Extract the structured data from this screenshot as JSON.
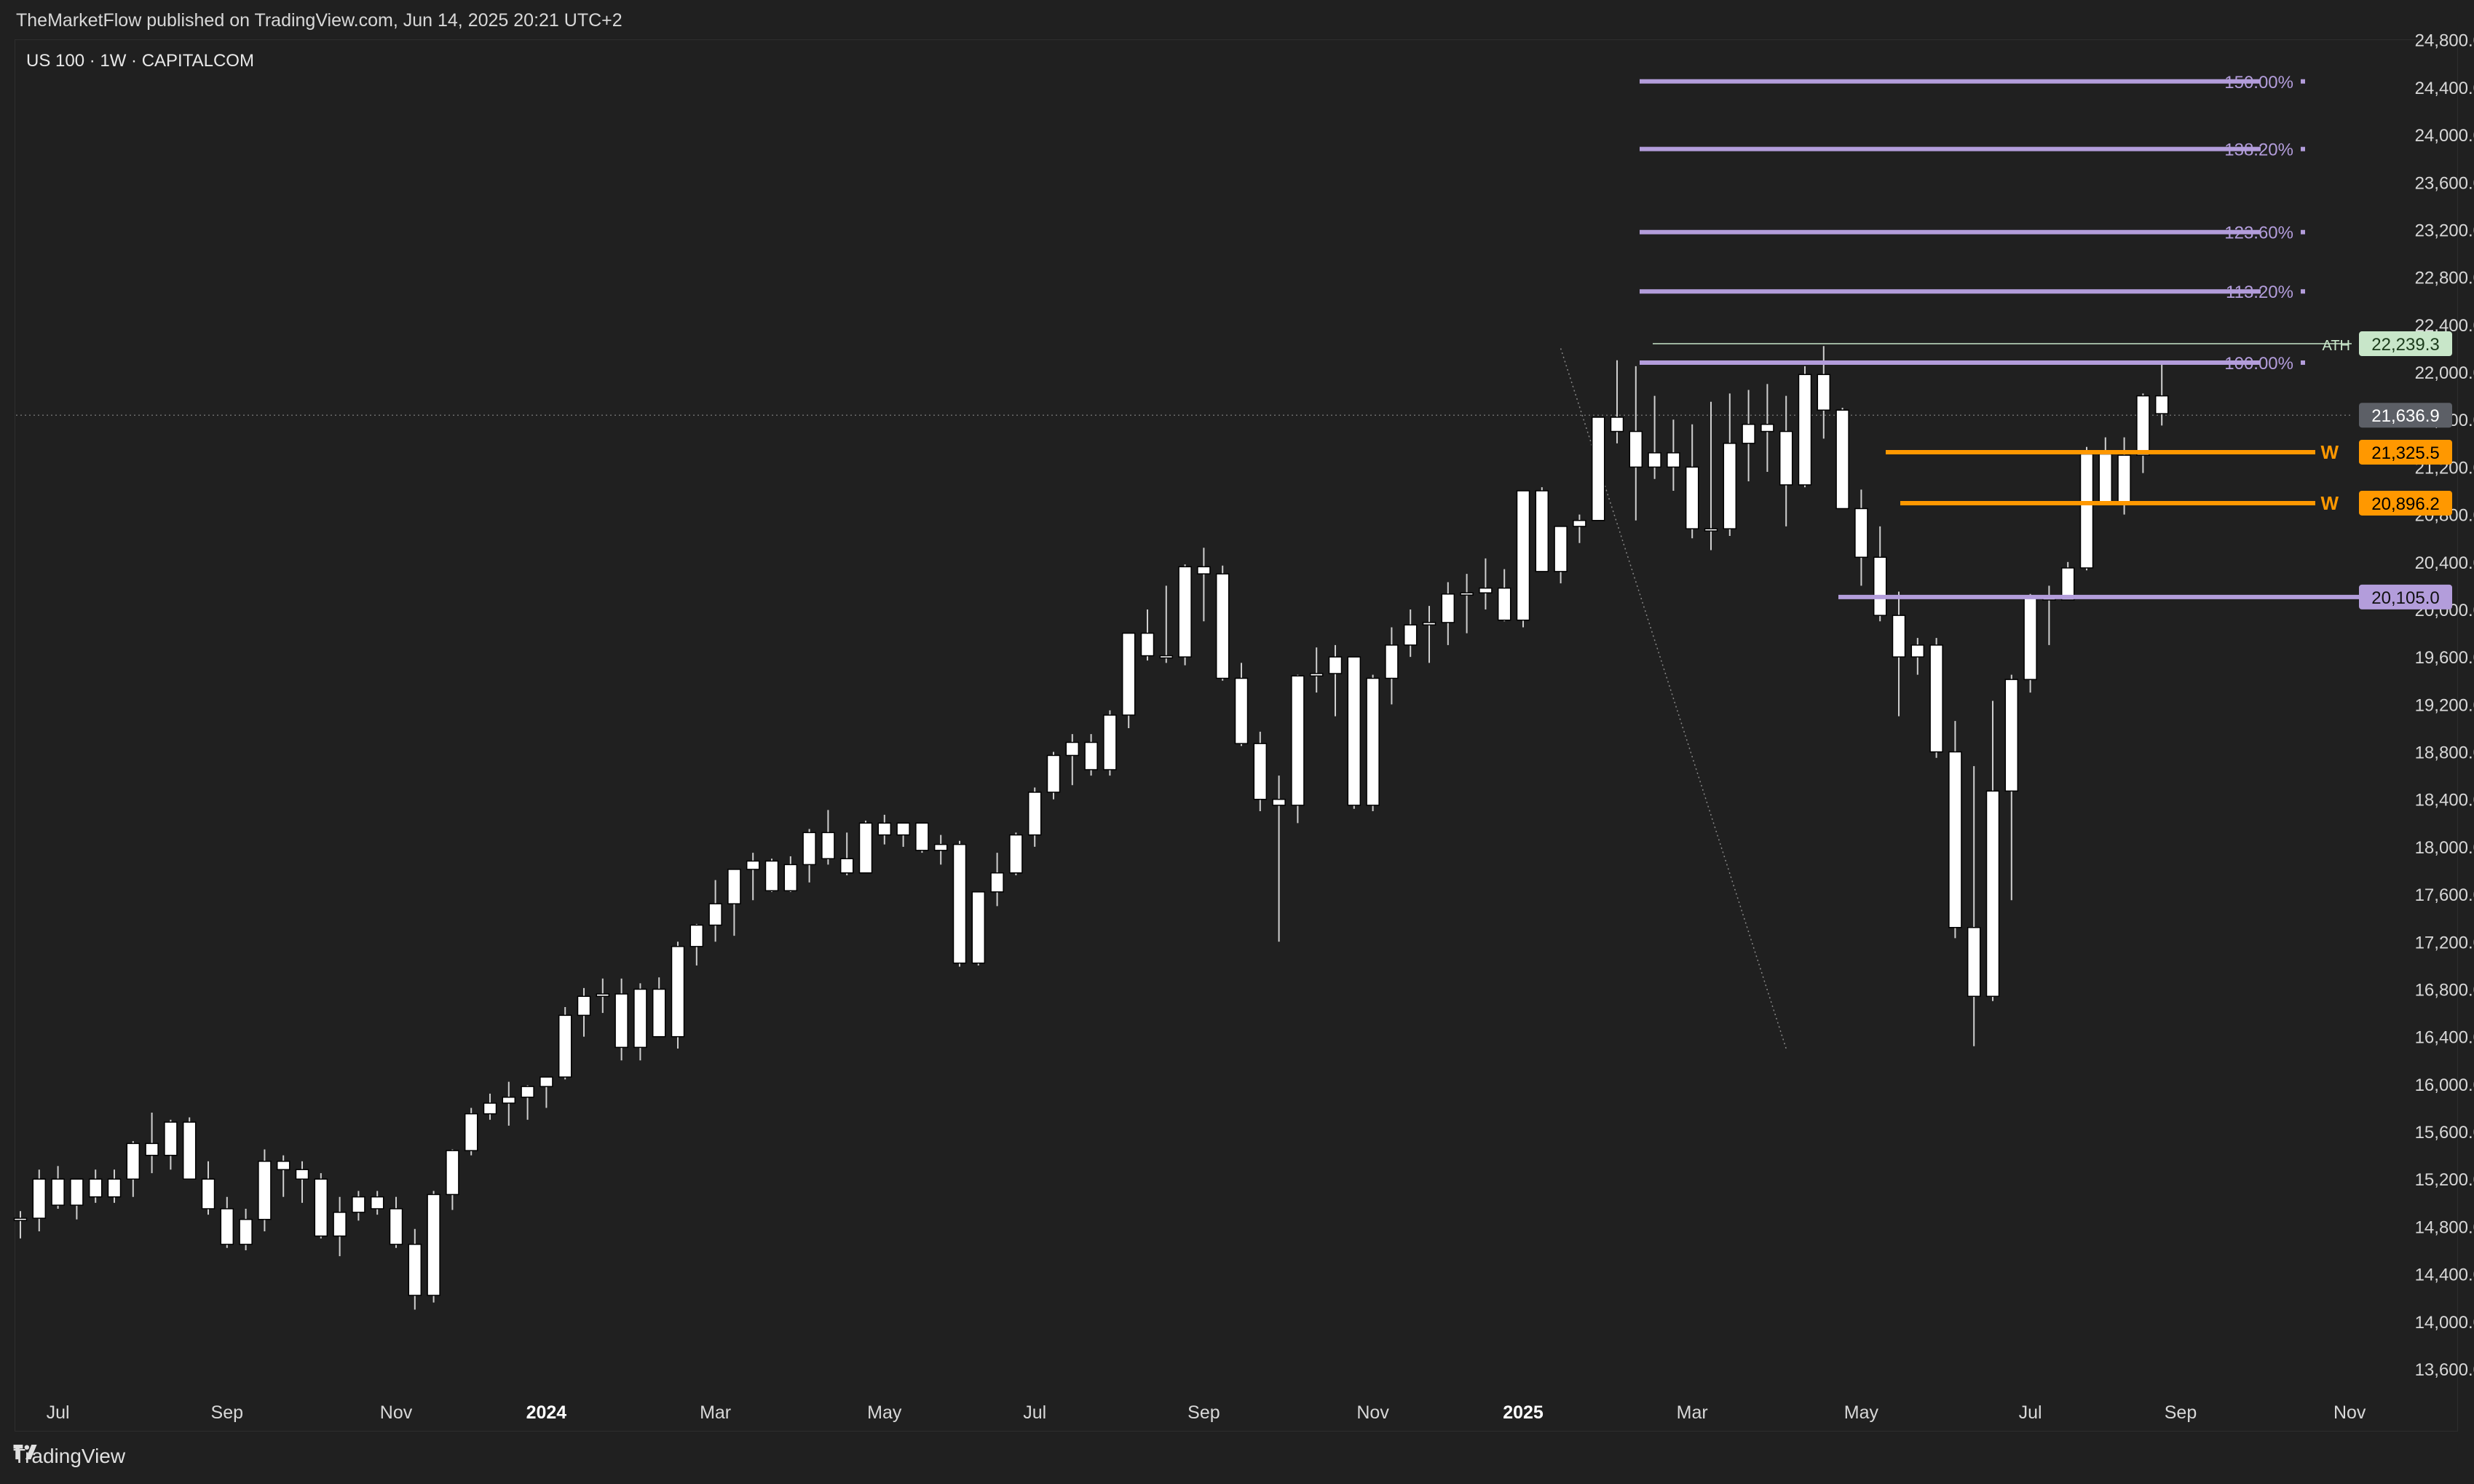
{
  "header": {
    "published": "TheMarketFlow published on TradingView.com, Jun 14, 2025 20:21 UTC+2",
    "symbol": "US 100 · 1W · CAPITALCOM"
  },
  "footer": {
    "brand": "TradingView"
  },
  "colors": {
    "background": "#202020",
    "candle_up": "#ffffff",
    "candle_down": "#ffffff",
    "wick": "#cfcfcf",
    "fib": "#b39ddb",
    "weekly_level": "#ff9800",
    "ath": "#c8e6c9"
  },
  "chart_data": {
    "type": "candlestick",
    "ylim": [
      13400,
      24800
    ],
    "y_ticks": [
      "13,600.0",
      "14,000.0",
      "14,400.0",
      "14,800.0",
      "15,200.0",
      "15,600.0",
      "16,000.0",
      "16,400.0",
      "16,800.0",
      "17,200.0",
      "17,600.0",
      "18,000.0",
      "18,400.0",
      "18,800.0",
      "19,200.0",
      "19,600.0",
      "20,000.0",
      "20,400.0",
      "20,800.0",
      "21,200.0",
      "21,600.0",
      "22,000.0",
      "22,400.0",
      "22,800.0",
      "23,200.0",
      "23,600.0",
      "24,000.0",
      "24,400.0",
      "24,800.0"
    ],
    "x_labels": [
      {
        "label": "Jul",
        "week": 2,
        "bold": false
      },
      {
        "label": "Sep",
        "week": 11,
        "bold": false
      },
      {
        "label": "Nov",
        "week": 20,
        "bold": false
      },
      {
        "label": "2024",
        "week": 28,
        "bold": true
      },
      {
        "label": "Mar",
        "week": 37,
        "bold": false
      },
      {
        "label": "May",
        "week": 46,
        "bold": false
      },
      {
        "label": "Jul",
        "week": 54,
        "bold": false
      },
      {
        "label": "Sep",
        "week": 63,
        "bold": false
      },
      {
        "label": "Nov",
        "week": 72,
        "bold": false
      },
      {
        "label": "2025",
        "week": 80,
        "bold": true
      },
      {
        "label": "Mar",
        "week": 89,
        "bold": false
      },
      {
        "label": "May",
        "week": 98,
        "bold": false
      },
      {
        "label": "Jul",
        "week": 107,
        "bold": false
      },
      {
        "label": "Sep",
        "week": 115,
        "bold": false
      },
      {
        "label": "Nov",
        "week": 124,
        "bold": false
      }
    ],
    "candles": [
      [
        14870,
        14930,
        14700,
        14870
      ],
      [
        14870,
        15280,
        14760,
        15200
      ],
      [
        15200,
        15310,
        14950,
        14980
      ],
      [
        14980,
        15200,
        14860,
        15200
      ],
      [
        15200,
        15280,
        15000,
        15050
      ],
      [
        15050,
        15280,
        15000,
        15200
      ],
      [
        15200,
        15520,
        15050,
        15500
      ],
      [
        15500,
        15760,
        15250,
        15400
      ],
      [
        15400,
        15700,
        15280,
        15680
      ],
      [
        15680,
        15720,
        15200,
        15200
      ],
      [
        15200,
        15350,
        14900,
        14950
      ],
      [
        14950,
        15050,
        14620,
        14650
      ],
      [
        14650,
        14950,
        14600,
        14860
      ],
      [
        14860,
        15450,
        14760,
        15350
      ],
      [
        15350,
        15400,
        15050,
        15280
      ],
      [
        15280,
        15350,
        15000,
        15200
      ],
      [
        15200,
        15250,
        14700,
        14720
      ],
      [
        14720,
        15050,
        14550,
        14920
      ],
      [
        14920,
        15100,
        14850,
        15050
      ],
      [
        15050,
        15100,
        14900,
        14950
      ],
      [
        14950,
        15050,
        14620,
        14650
      ],
      [
        14650,
        14780,
        14100,
        14220
      ],
      [
        14220,
        15100,
        14160,
        15070
      ],
      [
        15070,
        15450,
        14940,
        15440
      ],
      [
        15440,
        15800,
        15400,
        15750
      ],
      [
        15750,
        15920,
        15700,
        15840
      ],
      [
        15840,
        16020,
        15650,
        15890
      ],
      [
        15890,
        15990,
        15700,
        15980
      ],
      [
        15980,
        16020,
        15800,
        16060
      ],
      [
        16060,
        16650,
        16040,
        16580
      ],
      [
        16580,
        16810,
        16400,
        16740
      ],
      [
        16740,
        16890,
        16600,
        16760
      ],
      [
        16760,
        16890,
        16200,
        16310
      ],
      [
        16310,
        16850,
        16200,
        16800
      ],
      [
        16800,
        16900,
        16400,
        16400
      ],
      [
        16400,
        17200,
        16300,
        17160
      ],
      [
        17160,
        17350,
        17000,
        17340
      ],
      [
        17340,
        17720,
        17200,
        17520
      ],
      [
        17520,
        17800,
        17250,
        17810
      ],
      [
        17810,
        17950,
        17550,
        17880
      ],
      [
        17880,
        17900,
        17620,
        17630
      ],
      [
        17630,
        17920,
        17620,
        17850
      ],
      [
        17850,
        18150,
        17700,
        18120
      ],
      [
        18120,
        18310,
        17850,
        17900
      ],
      [
        17900,
        18120,
        17760,
        17780
      ],
      [
        17780,
        18220,
        17780,
        18200
      ],
      [
        18200,
        18270,
        18020,
        18100
      ],
      [
        18100,
        18200,
        18000,
        18200
      ],
      [
        18200,
        18200,
        17950,
        17970
      ],
      [
        17970,
        18100,
        17850,
        18020
      ],
      [
        18020,
        18050,
        16990,
        17020
      ],
      [
        17020,
        17620,
        17000,
        17620
      ],
      [
        17620,
        17950,
        17500,
        17780
      ],
      [
        17780,
        18120,
        17760,
        18100
      ],
      [
        18100,
        18500,
        18000,
        18460
      ],
      [
        18460,
        18800,
        18400,
        18770
      ],
      [
        18770,
        18950,
        18520,
        18880
      ],
      [
        18880,
        18950,
        18600,
        18650
      ],
      [
        18650,
        19150,
        18600,
        19110
      ],
      [
        19110,
        19800,
        19000,
        19800
      ],
      [
        19800,
        20000,
        19570,
        19610
      ],
      [
        19610,
        20200,
        19550,
        19600
      ],
      [
        19600,
        20380,
        19530,
        20360
      ],
      [
        20360,
        20520,
        19900,
        20300
      ],
      [
        20300,
        20370,
        19400,
        19420
      ],
      [
        19420,
        19550,
        18850,
        18870
      ],
      [
        18870,
        18970,
        18300,
        18400
      ],
      [
        18400,
        18600,
        17200,
        18350
      ],
      [
        18350,
        19450,
        18200,
        19440
      ],
      [
        19440,
        19680,
        19300,
        19460
      ],
      [
        19460,
        19700,
        19100,
        19600
      ],
      [
        19600,
        19600,
        18320,
        18350
      ],
      [
        18350,
        19450,
        18300,
        19420
      ],
      [
        19420,
        19850,
        19200,
        19700
      ],
      [
        19700,
        20000,
        19600,
        19870
      ],
      [
        19870,
        20030,
        19550,
        19890
      ],
      [
        19890,
        20230,
        19700,
        20130
      ],
      [
        20130,
        20300,
        19800,
        20140
      ],
      [
        20140,
        20430,
        20000,
        20180
      ],
      [
        20180,
        20340,
        19900,
        19910
      ],
      [
        19910,
        21000,
        19850,
        21000
      ],
      [
        21000,
        21030,
        20320,
        20320
      ],
      [
        20320,
        20700,
        20220,
        20700
      ],
      [
        20700,
        20800,
        20560,
        20750
      ],
      [
        20750,
        21620,
        20750,
        21620
      ],
      [
        21620,
        22100,
        21400,
        21500
      ],
      [
        21500,
        22050,
        20750,
        21200
      ],
      [
        21200,
        21800,
        21100,
        21320
      ],
      [
        21320,
        21600,
        21000,
        21200
      ],
      [
        21200,
        21560,
        20600,
        20680
      ],
      [
        20680,
        21750,
        20500,
        20680
      ],
      [
        20680,
        21820,
        20620,
        21400
      ],
      [
        21400,
        21850,
        21080,
        21560
      ],
      [
        21560,
        21900,
        21160,
        21500
      ],
      [
        21500,
        21800,
        20700,
        21050
      ],
      [
        21050,
        22050,
        21030,
        21980
      ],
      [
        21980,
        22220,
        21440,
        21680
      ],
      [
        21680,
        21700,
        20850,
        20850
      ],
      [
        20850,
        21010,
        20200,
        20440
      ],
      [
        20440,
        20700,
        19900,
        19950
      ],
      [
        19950,
        20150,
        19100,
        19600
      ],
      [
        19600,
        19760,
        19450,
        19700
      ],
      [
        19700,
        19760,
        18750,
        18800
      ],
      [
        18800,
        19060,
        17230,
        17320
      ],
      [
        17320,
        18680,
        16320,
        16740
      ],
      [
        16740,
        19230,
        16700,
        18470
      ],
      [
        18470,
        19450,
        17550,
        19410
      ],
      [
        19410,
        20130,
        19300,
        20100
      ],
      [
        20100,
        20200,
        19700,
        20080
      ],
      [
        20080,
        20400,
        20100,
        20350
      ],
      [
        20350,
        21370,
        20330,
        21310
      ],
      [
        21310,
        21450,
        20900,
        20890
      ],
      [
        20890,
        21450,
        20800,
        21300
      ],
      [
        21300,
        21820,
        21150,
        21800
      ],
      [
        21800,
        22080,
        21550,
        21650
      ]
    ],
    "levels": [
      {
        "name": "Fib 150.00%",
        "label": "150.00%",
        "value": 24450,
        "style": "fib"
      },
      {
        "name": "Fib 138.20%",
        "label": "138.20%",
        "value": 23880,
        "style": "fib"
      },
      {
        "name": "Fib 123.60%",
        "label": "123.60%",
        "value": 23180,
        "style": "fib"
      },
      {
        "name": "Fib 113.20%",
        "label": "113.20%",
        "value": 22680,
        "style": "fib"
      },
      {
        "name": "Fib 100.00%",
        "label": "100.00%",
        "value": 22080,
        "style": "fib"
      }
    ],
    "price_tags": [
      {
        "name": "ATH",
        "value": 22239.3,
        "text": "22,239.3",
        "prefix": "ATH",
        "bg": "#c8e6c9",
        "fg": "#1b3b1b"
      },
      {
        "name": "Last price",
        "value": 21636.9,
        "text": "21,636.9",
        "prefix": "",
        "bg": "#5c5f66",
        "fg": "#ffffff"
      },
      {
        "name": "Weekly level 1",
        "value": 21325.5,
        "text": "21,325.5",
        "prefix": "W",
        "bg": "#ff9800",
        "fg": "#000000"
      },
      {
        "name": "Weekly level 2",
        "value": 20896.2,
        "text": "20,896.2",
        "prefix": "W",
        "bg": "#ff9800",
        "fg": "#000000"
      },
      {
        "name": "Support",
        "value": 20105,
        "text": "20,105.0",
        "prefix": "",
        "bg": "#b39ddb",
        "fg": "#111111"
      }
    ]
  }
}
